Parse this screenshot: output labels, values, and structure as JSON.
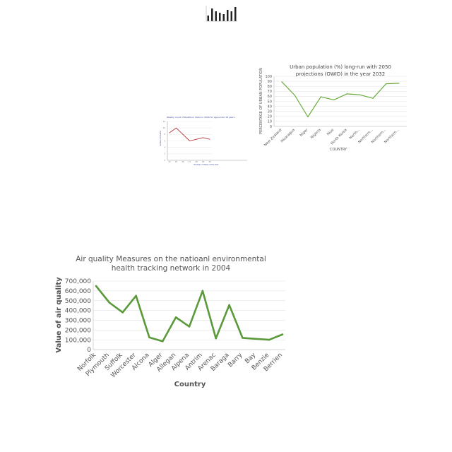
{
  "chart_data": [
    {
      "id": "tiny-bar",
      "type": "bar",
      "title": "",
      "xlabel": "",
      "ylabel": "",
      "categories": [
        "",
        "",
        "",
        "",
        "",
        "",
        "",
        ""
      ],
      "values": [
        4,
        9,
        7,
        6,
        5,
        8,
        7,
        10
      ],
      "ylim": [
        0,
        11
      ],
      "color": "#222222"
    },
    {
      "id": "weekly-deaths",
      "type": "line",
      "title": "Weekly count of Deaths in Idaho in 2020 for age under 18 years",
      "xlabel": "Number of Week of the Year",
      "ylabel": "number of deaths",
      "x": [
        "24",
        "25",
        "26",
        "27",
        "28",
        "29",
        "30"
      ],
      "y": [
        8.5,
        10,
        8,
        6,
        6.5,
        7,
        6.5
      ],
      "ylim": [
        0,
        12
      ],
      "yticks": [
        "0",
        "2",
        "4",
        "6",
        "8",
        "10",
        "12"
      ],
      "grid": true,
      "color": "#b0383c"
    },
    {
      "id": "urban-population",
      "type": "line",
      "title": "Urban population (%) long-run with 2050 projections (OWID) in the year 2032",
      "xlabel": "COUNTRY",
      "ylabel": "PERCENTAGE OF URBAN POPULATION",
      "x": [
        "New Zealand",
        "Nicaragua",
        "Niger",
        "Nigeria",
        "Niue",
        "North Korea",
        "North...",
        "Northern...",
        "Northern...",
        "Northern..."
      ],
      "y": [
        89,
        62,
        19,
        59,
        53,
        65,
        63,
        56,
        85,
        86
      ],
      "ylim": [
        0,
        100
      ],
      "yticks": [
        "0",
        "10",
        "20",
        "30",
        "40",
        "50",
        "60",
        "70",
        "80",
        "90",
        "100"
      ],
      "grid": true,
      "color": "#6aaa3c"
    },
    {
      "id": "air-quality",
      "type": "line",
      "title": "Air quality Measures on the natioanl environmental health tracking network in 2004",
      "xlabel": "Country",
      "ylabel": "Value of air quality",
      "x": [
        "Norfolk",
        "Plymouth",
        "Suffolk",
        "Worcester",
        "Alcona",
        "Alger",
        "Allegan",
        "Alpena",
        "Antrim",
        "Arenac",
        "Baraga",
        "Barry",
        "Bay",
        "Benzie",
        "Berrien"
      ],
      "y": [
        650000,
        480000,
        380000,
        550000,
        125000,
        85000,
        330000,
        235000,
        600000,
        115000,
        455000,
        120000,
        110000,
        100000,
        155000
      ],
      "ylim": [
        0,
        700000
      ],
      "yticks": [
        "0",
        "100,000",
        "200,000",
        "300,000",
        "400,000",
        "500,000",
        "600,000",
        "700,000"
      ],
      "grid": true,
      "color": "#5a9a3a"
    }
  ]
}
